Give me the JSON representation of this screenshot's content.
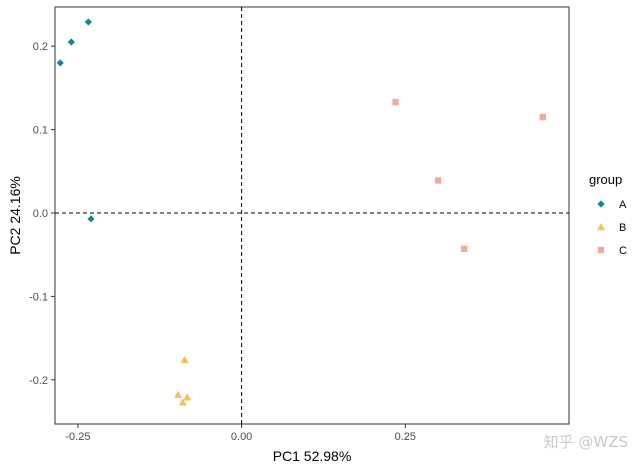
{
  "chart_data": {
    "type": "scatter",
    "title": "",
    "xlabel": "PC1 52.98%",
    "ylabel": "PC2 24.16%",
    "xlim": [
      -0.285,
      0.5
    ],
    "ylim": [
      -0.253,
      0.247
    ],
    "x_ticks": [
      -0.25,
      0.0,
      0.25
    ],
    "x_tick_labels": [
      "-0.25",
      "0.00",
      "0.25"
    ],
    "y_ticks": [
      -0.2,
      -0.1,
      0.0,
      0.1,
      0.2
    ],
    "y_tick_labels": [
      "-0.2",
      "-0.1",
      "0.0",
      "0.1",
      "0.2"
    ],
    "reference_lines": {
      "x": 0,
      "y": 0,
      "style": "dashed"
    },
    "grid": false,
    "legend": {
      "title": "group",
      "position": "right"
    },
    "series": [
      {
        "name": "A",
        "marker": "diamond",
        "color": "#1a8199",
        "points": [
          [
            -0.234,
            0.229
          ],
          [
            -0.26,
            0.205
          ],
          [
            -0.277,
            0.18
          ],
          [
            -0.23,
            -0.007
          ]
        ]
      },
      {
        "name": "B",
        "marker": "triangle",
        "color": "#f5c15a",
        "points": [
          [
            -0.087,
            -0.176
          ],
          [
            -0.097,
            -0.218
          ],
          [
            -0.083,
            -0.221
          ],
          [
            -0.09,
            -0.227
          ]
        ]
      },
      {
        "name": "C",
        "marker": "square",
        "color": "#f2aaa0",
        "points": [
          [
            0.235,
            0.133
          ],
          [
            0.46,
            0.115
          ],
          [
            0.3,
            0.039
          ],
          [
            0.34,
            -0.043
          ]
        ]
      }
    ]
  },
  "watermark": "知乎 @WZS"
}
